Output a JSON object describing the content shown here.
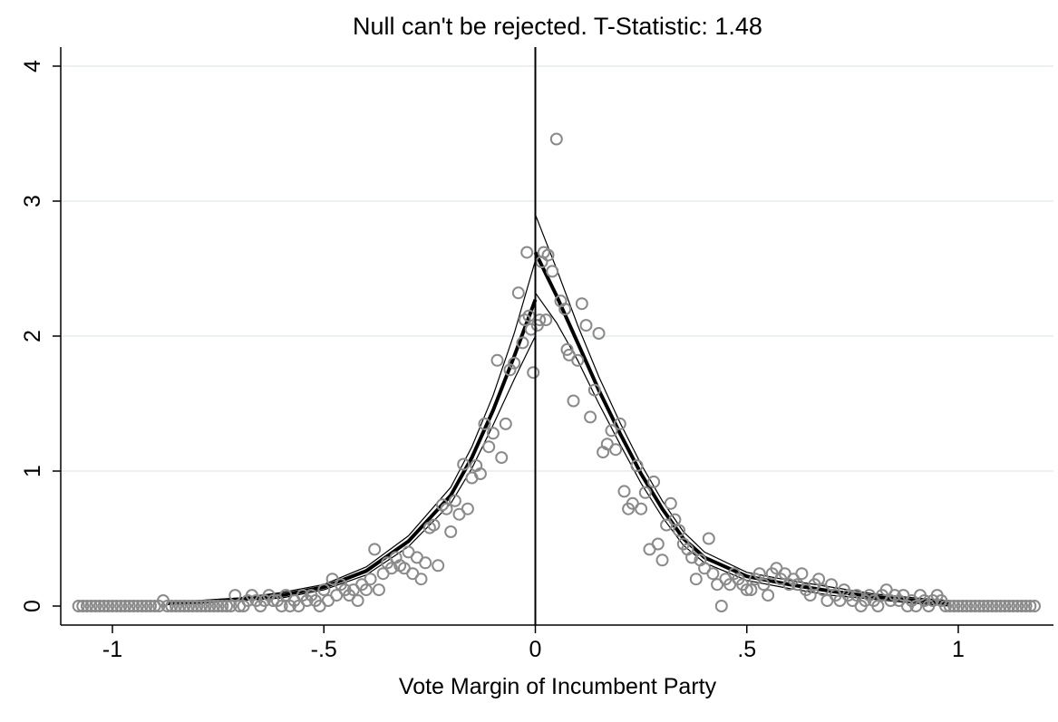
{
  "chart_data": {
    "type": "scatter",
    "title": "Null can't be rejected. T-Statistic: 1.48",
    "xlabel": "Vote Margin of Incumbent Party",
    "ylabel": "",
    "xlim": [
      -1.1,
      1.2
    ],
    "ylim": [
      0,
      4
    ],
    "cutoff": 0,
    "grid": true,
    "xticks": [
      {
        "value": -1,
        "label": "-1"
      },
      {
        "value": -0.5,
        "label": "-.5"
      },
      {
        "value": 0,
        "label": "0"
      },
      {
        "value": 0.5,
        "label": ".5"
      },
      {
        "value": 1,
        "label": "1"
      }
    ],
    "yticks": [
      {
        "value": 0,
        "label": "0"
      },
      {
        "value": 1,
        "label": "1"
      },
      {
        "value": 2,
        "label": "2"
      },
      {
        "value": 3,
        "label": "3"
      },
      {
        "value": 4,
        "label": "4"
      }
    ],
    "colors": {
      "points": "#8a8a8a",
      "fit": "#000000",
      "ci": "#000000",
      "cutoff": "#000000",
      "grid": "#e6ecef"
    },
    "points": [
      [
        -1.08,
        0
      ],
      [
        -1.07,
        0
      ],
      [
        -1.06,
        0
      ],
      [
        -1.05,
        0
      ],
      [
        -1.04,
        0
      ],
      [
        -1.03,
        0
      ],
      [
        -1.02,
        0
      ],
      [
        -1.01,
        0
      ],
      [
        -1.0,
        0
      ],
      [
        -0.99,
        0
      ],
      [
        -0.98,
        0
      ],
      [
        -0.97,
        0
      ],
      [
        -0.96,
        0
      ],
      [
        -0.95,
        0
      ],
      [
        -0.94,
        0
      ],
      [
        -0.93,
        0
      ],
      [
        -0.92,
        0
      ],
      [
        -0.91,
        0
      ],
      [
        -0.9,
        0
      ],
      [
        -0.89,
        0
      ],
      [
        -0.88,
        0.04
      ],
      [
        -0.87,
        0
      ],
      [
        -0.86,
        0
      ],
      [
        -0.85,
        0
      ],
      [
        -0.84,
        0
      ],
      [
        -0.83,
        0
      ],
      [
        -0.82,
        0
      ],
      [
        -0.81,
        0
      ],
      [
        -0.8,
        0
      ],
      [
        -0.79,
        0
      ],
      [
        -0.78,
        0
      ],
      [
        -0.77,
        0
      ],
      [
        -0.76,
        0
      ],
      [
        -0.75,
        0
      ],
      [
        -0.74,
        0
      ],
      [
        -0.73,
        0
      ],
      [
        -0.72,
        0
      ],
      [
        -0.71,
        0.08
      ],
      [
        -0.7,
        0
      ],
      [
        -0.69,
        0
      ],
      [
        -0.68,
        0.04
      ],
      [
        -0.67,
        0.08
      ],
      [
        -0.66,
        0.04
      ],
      [
        -0.65,
        0
      ],
      [
        -0.64,
        0.04
      ],
      [
        -0.63,
        0.08
      ],
      [
        -0.62,
        0.04
      ],
      [
        -0.61,
        0.04
      ],
      [
        -0.6,
        0
      ],
      [
        -0.59,
        0.08
      ],
      [
        -0.58,
        0
      ],
      [
        -0.57,
        0.04
      ],
      [
        -0.56,
        0
      ],
      [
        -0.55,
        0.08
      ],
      [
        -0.54,
        0.04
      ],
      [
        -0.53,
        0.08
      ],
      [
        -0.52,
        0.04
      ],
      [
        -0.51,
        0
      ],
      [
        -0.5,
        0.12
      ],
      [
        -0.49,
        0.04
      ],
      [
        -0.48,
        0.2
      ],
      [
        -0.47,
        0.08
      ],
      [
        -0.46,
        0.16
      ],
      [
        -0.45,
        0.12
      ],
      [
        -0.44,
        0.08
      ],
      [
        -0.43,
        0.12
      ],
      [
        -0.42,
        0.04
      ],
      [
        -0.41,
        0.16
      ],
      [
        -0.4,
        0.12
      ],
      [
        -0.39,
        0.2
      ],
      [
        -0.38,
        0.42
      ],
      [
        -0.37,
        0.12
      ],
      [
        -0.36,
        0.24
      ],
      [
        -0.35,
        0.32
      ],
      [
        -0.34,
        0.28
      ],
      [
        -0.33,
        0.36
      ],
      [
        -0.32,
        0.3
      ],
      [
        -0.31,
        0.28
      ],
      [
        -0.3,
        0.4
      ],
      [
        -0.29,
        0.24
      ],
      [
        -0.28,
        0.36
      ],
      [
        -0.27,
        0.2
      ],
      [
        -0.26,
        0.32
      ],
      [
        -0.25,
        0.58
      ],
      [
        -0.24,
        0.6
      ],
      [
        -0.23,
        0.3
      ],
      [
        -0.22,
        0.75
      ],
      [
        -0.21,
        0.72
      ],
      [
        -0.2,
        0.55
      ],
      [
        -0.19,
        0.78
      ],
      [
        -0.18,
        0.68
      ],
      [
        -0.17,
        1.05
      ],
      [
        -0.16,
        0.72
      ],
      [
        -0.15,
        0.95
      ],
      [
        -0.14,
        1.04
      ],
      [
        -0.13,
        0.98
      ],
      [
        -0.12,
        1.35
      ],
      [
        -0.11,
        1.18
      ],
      [
        -0.1,
        1.28
      ],
      [
        -0.09,
        1.82
      ],
      [
        -0.08,
        1.1
      ],
      [
        -0.07,
        1.35
      ],
      [
        -0.06,
        1.75
      ],
      [
        -0.05,
        1.8
      ],
      [
        -0.04,
        2.32
      ],
      [
        -0.03,
        1.95
      ],
      [
        -0.025,
        2.12
      ],
      [
        -0.02,
        2.62
      ],
      [
        -0.015,
        2.15
      ],
      [
        -0.01,
        2.05
      ],
      [
        -0.005,
        1.73
      ],
      [
        0.005,
        2.08
      ],
      [
        0.01,
        2.12
      ],
      [
        0.015,
        2.55
      ],
      [
        0.02,
        2.62
      ],
      [
        0.025,
        2.12
      ],
      [
        0.03,
        2.6
      ],
      [
        0.04,
        2.48
      ],
      [
        0.05,
        3.46
      ],
      [
        0.06,
        2.26
      ],
      [
        0.07,
        2.2
      ],
      [
        0.075,
        1.9
      ],
      [
        0.08,
        1.86
      ],
      [
        0.09,
        1.52
      ],
      [
        0.1,
        1.82
      ],
      [
        0.11,
        2.24
      ],
      [
        0.12,
        2.08
      ],
      [
        0.13,
        1.4
      ],
      [
        0.14,
        1.6
      ],
      [
        0.15,
        2.02
      ],
      [
        0.16,
        1.14
      ],
      [
        0.17,
        1.2
      ],
      [
        0.18,
        1.3
      ],
      [
        0.19,
        1.16
      ],
      [
        0.2,
        1.35
      ],
      [
        0.21,
        0.85
      ],
      [
        0.22,
        0.72
      ],
      [
        0.23,
        0.76
      ],
      [
        0.24,
        1.04
      ],
      [
        0.25,
        0.72
      ],
      [
        0.26,
        0.84
      ],
      [
        0.27,
        0.42
      ],
      [
        0.28,
        0.92
      ],
      [
        0.29,
        0.46
      ],
      [
        0.3,
        0.34
      ],
      [
        0.31,
        0.6
      ],
      [
        0.32,
        0.76
      ],
      [
        0.33,
        0.64
      ],
      [
        0.34,
        0.56
      ],
      [
        0.35,
        0.46
      ],
      [
        0.36,
        0.42
      ],
      [
        0.37,
        0.36
      ],
      [
        0.38,
        0.2
      ],
      [
        0.39,
        0.34
      ],
      [
        0.4,
        0.28
      ],
      [
        0.41,
        0.5
      ],
      [
        0.42,
        0.24
      ],
      [
        0.43,
        0.16
      ],
      [
        0.44,
        0
      ],
      [
        0.45,
        0.2
      ],
      [
        0.46,
        0.16
      ],
      [
        0.47,
        0.24
      ],
      [
        0.48,
        0.2
      ],
      [
        0.49,
        0.16
      ],
      [
        0.5,
        0.12
      ],
      [
        0.51,
        0.12
      ],
      [
        0.52,
        0.2
      ],
      [
        0.53,
        0.24
      ],
      [
        0.54,
        0.16
      ],
      [
        0.55,
        0.08
      ],
      [
        0.56,
        0.24
      ],
      [
        0.57,
        0.28
      ],
      [
        0.58,
        0.2
      ],
      [
        0.59,
        0.24
      ],
      [
        0.6,
        0.16
      ],
      [
        0.61,
        0.2
      ],
      [
        0.62,
        0.16
      ],
      [
        0.63,
        0.24
      ],
      [
        0.64,
        0.12
      ],
      [
        0.65,
        0.08
      ],
      [
        0.66,
        0.16
      ],
      [
        0.67,
        0.2
      ],
      [
        0.68,
        0.12
      ],
      [
        0.69,
        0.04
      ],
      [
        0.7,
        0.16
      ],
      [
        0.71,
        0.08
      ],
      [
        0.72,
        0.04
      ],
      [
        0.73,
        0.12
      ],
      [
        0.74,
        0.08
      ],
      [
        0.75,
        0.04
      ],
      [
        0.76,
        0.08
      ],
      [
        0.77,
        0
      ],
      [
        0.78,
        0.04
      ],
      [
        0.79,
        0.08
      ],
      [
        0.8,
        0.04
      ],
      [
        0.81,
        0
      ],
      [
        0.82,
        0.08
      ],
      [
        0.83,
        0.12
      ],
      [
        0.84,
        0.04
      ],
      [
        0.85,
        0.08
      ],
      [
        0.86,
        0.04
      ],
      [
        0.87,
        0.08
      ],
      [
        0.88,
        0
      ],
      [
        0.89,
        0.04
      ],
      [
        0.9,
        0
      ],
      [
        0.91,
        0.08
      ],
      [
        0.92,
        0.04
      ],
      [
        0.93,
        0
      ],
      [
        0.94,
        0.04
      ],
      [
        0.95,
        0.08
      ],
      [
        0.96,
        0.04
      ],
      [
        0.97,
        0
      ],
      [
        0.98,
        0
      ],
      [
        0.99,
        0
      ],
      [
        1.0,
        0
      ],
      [
        1.01,
        0
      ],
      [
        1.02,
        0
      ],
      [
        1.03,
        0
      ],
      [
        1.04,
        0
      ],
      [
        1.05,
        0
      ],
      [
        1.06,
        0
      ],
      [
        1.07,
        0
      ],
      [
        1.08,
        0
      ],
      [
        1.09,
        0
      ],
      [
        1.1,
        0
      ],
      [
        1.11,
        0
      ],
      [
        1.12,
        0
      ],
      [
        1.13,
        0
      ],
      [
        1.14,
        0
      ],
      [
        1.15,
        0
      ],
      [
        1.16,
        0
      ],
      [
        1.17,
        0
      ],
      [
        1.18,
        0
      ]
    ],
    "fit_left": [
      [
        -0.87,
        0.02
      ],
      [
        -0.8,
        0.03
      ],
      [
        -0.7,
        0.05
      ],
      [
        -0.6,
        0.08
      ],
      [
        -0.5,
        0.14
      ],
      [
        -0.4,
        0.26
      ],
      [
        -0.3,
        0.48
      ],
      [
        -0.2,
        0.82
      ],
      [
        -0.15,
        1.1
      ],
      [
        -0.1,
        1.45
      ],
      [
        -0.05,
        1.85
      ],
      [
        0,
        2.27
      ]
    ],
    "ci_left_upper": [
      [
        -0.87,
        0.03
      ],
      [
        -0.8,
        0.04
      ],
      [
        -0.7,
        0.06
      ],
      [
        -0.6,
        0.1
      ],
      [
        -0.5,
        0.16
      ],
      [
        -0.4,
        0.29
      ],
      [
        -0.3,
        0.52
      ],
      [
        -0.2,
        0.88
      ],
      [
        -0.15,
        1.18
      ],
      [
        -0.1,
        1.56
      ],
      [
        -0.05,
        2.02
      ],
      [
        0,
        2.56
      ]
    ],
    "ci_left_lower": [
      [
        -0.87,
        0.01
      ],
      [
        -0.8,
        0.02
      ],
      [
        -0.7,
        0.04
      ],
      [
        -0.6,
        0.06
      ],
      [
        -0.5,
        0.12
      ],
      [
        -0.4,
        0.23
      ],
      [
        -0.3,
        0.44
      ],
      [
        -0.2,
        0.76
      ],
      [
        -0.15,
        1.02
      ],
      [
        -0.1,
        1.34
      ],
      [
        -0.05,
        1.68
      ],
      [
        0,
        2.0
      ]
    ],
    "fit_right": [
      [
        0,
        2.62
      ],
      [
        0.05,
        2.3
      ],
      [
        0.1,
        1.95
      ],
      [
        0.15,
        1.6
      ],
      [
        0.2,
        1.28
      ],
      [
        0.25,
        0.98
      ],
      [
        0.3,
        0.72
      ],
      [
        0.35,
        0.5
      ],
      [
        0.4,
        0.36
      ],
      [
        0.5,
        0.22
      ],
      [
        0.6,
        0.16
      ],
      [
        0.7,
        0.11
      ],
      [
        0.8,
        0.07
      ],
      [
        0.9,
        0.04
      ],
      [
        0.98,
        0.02
      ]
    ],
    "ci_right_upper": [
      [
        0,
        2.9
      ],
      [
        0.05,
        2.5
      ],
      [
        0.1,
        2.08
      ],
      [
        0.15,
        1.7
      ],
      [
        0.2,
        1.36
      ],
      [
        0.25,
        1.05
      ],
      [
        0.3,
        0.78
      ],
      [
        0.35,
        0.55
      ],
      [
        0.4,
        0.4
      ],
      [
        0.5,
        0.25
      ],
      [
        0.6,
        0.19
      ],
      [
        0.7,
        0.14
      ],
      [
        0.8,
        0.09
      ],
      [
        0.9,
        0.06
      ],
      [
        0.98,
        0.04
      ]
    ],
    "ci_right_lower": [
      [
        0,
        2.32
      ],
      [
        0.05,
        2.1
      ],
      [
        0.1,
        1.82
      ],
      [
        0.15,
        1.5
      ],
      [
        0.2,
        1.2
      ],
      [
        0.25,
        0.91
      ],
      [
        0.3,
        0.66
      ],
      [
        0.35,
        0.45
      ],
      [
        0.4,
        0.32
      ],
      [
        0.5,
        0.19
      ],
      [
        0.6,
        0.13
      ],
      [
        0.7,
        0.08
      ],
      [
        0.8,
        0.05
      ],
      [
        0.9,
        0.02
      ],
      [
        0.98,
        0.0
      ]
    ]
  }
}
